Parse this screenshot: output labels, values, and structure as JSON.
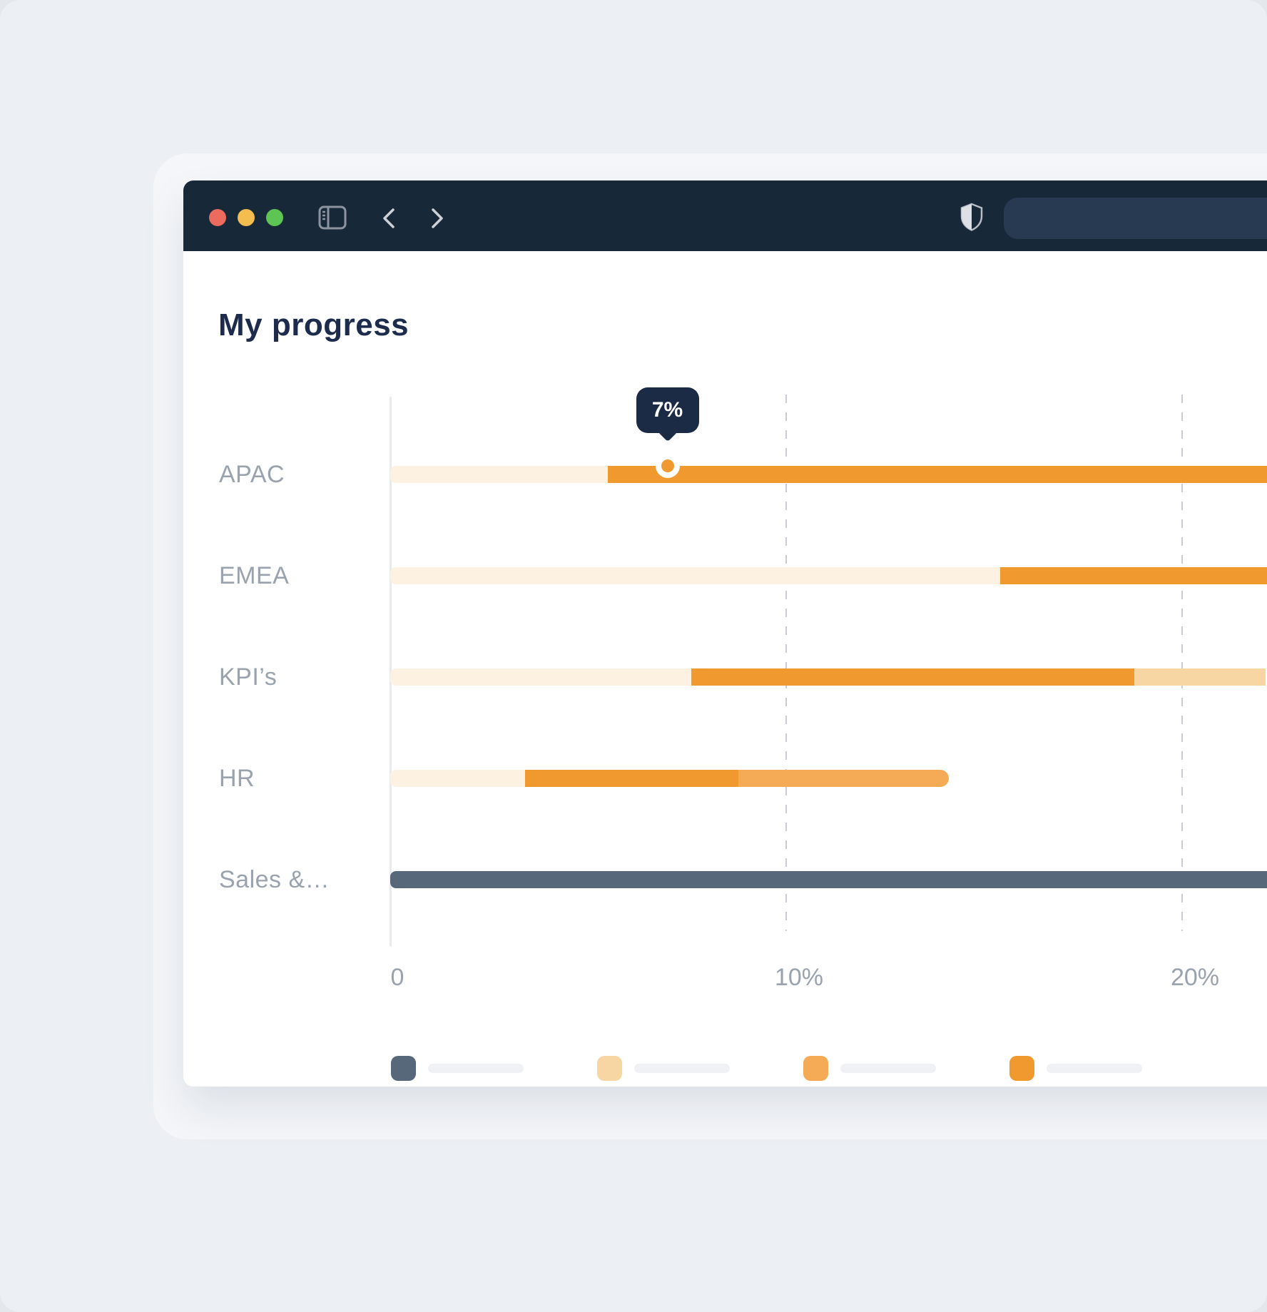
{
  "window": {
    "controls": [
      {
        "name": "close",
        "color": "#ed6a5e"
      },
      {
        "name": "minimize",
        "color": "#f4bd4f"
      },
      {
        "name": "zoom",
        "color": "#5ec454"
      }
    ],
    "toolbar_icons": [
      "sidebar-toggle-icon",
      "chevron-left-icon",
      "chevron-right-icon",
      "shield-icon"
    ],
    "address_bar": {
      "value": ""
    }
  },
  "page": {
    "title": "My progress"
  },
  "chart_data": {
    "type": "bar",
    "orientation": "horizontal",
    "title": "My progress",
    "unit": "percent",
    "x_axis": {
      "ticks": [
        {
          "value": 0,
          "label": "0"
        },
        {
          "value": 10,
          "label": "10%"
        },
        {
          "value": 20,
          "label": "20%"
        }
      ],
      "gridlines": [
        10,
        20
      ],
      "visible_max": 22.5,
      "grid_style": "dashed-vertical"
    },
    "categories": [
      "APAC",
      "EMEA",
      "KPI’s",
      "HR",
      "Sales &…"
    ],
    "rows": [
      {
        "label": "APAC",
        "segments": [
          {
            "color_key": "cream",
            "from": 0,
            "to": 5.5,
            "rounded_start": true
          },
          {
            "color_key": "orange",
            "from": 5.5,
            "to": 22.5,
            "cut_right": true
          }
        ],
        "marker": {
          "value": 7,
          "label": "7%"
        }
      },
      {
        "label": "EMEA",
        "segments": [
          {
            "color_key": "cream",
            "from": 0,
            "to": 15.4,
            "rounded_start": true
          },
          {
            "color_key": "orange",
            "from": 15.4,
            "to": 22.5,
            "cut_right": true
          }
        ]
      },
      {
        "label": "KPI’s",
        "segments": [
          {
            "color_key": "cream",
            "from": 0,
            "to": 7.6,
            "rounded_start": true
          },
          {
            "color_key": "orange",
            "from": 7.6,
            "to": 18.8
          },
          {
            "color_key": "tan",
            "from": 18.8,
            "to": 22.1,
            "cut_right": true
          }
        ]
      },
      {
        "label": "HR",
        "segments": [
          {
            "color_key": "cream",
            "from": 0,
            "to": 3.4,
            "rounded_start": true
          },
          {
            "color_key": "orange",
            "from": 3.4,
            "to": 8.8
          },
          {
            "color_key": "medium_orange",
            "from": 8.8,
            "to": 14.1,
            "rounded_end": true
          }
        ]
      },
      {
        "label": "Sales &…",
        "segments": [
          {
            "color_key": "slate",
            "from": 0,
            "to": 22.5,
            "rounded_start": true,
            "cut_right": true
          }
        ]
      }
    ],
    "colors": {
      "cream": "#fdf2e2",
      "tan": "#f7d6a4",
      "medium_orange": "#f5ab55",
      "orange": "#f0992e",
      "slate": "#566879"
    },
    "legend": [
      {
        "color_key": "slate",
        "label": "",
        "label_placeholder": true
      },
      {
        "color_key": "tan",
        "label": "",
        "label_placeholder": true
      },
      {
        "color_key": "medium_orange",
        "label": "",
        "label_placeholder": true
      },
      {
        "color_key": "orange",
        "label": "",
        "label_placeholder": true
      }
    ],
    "legend_position": "bottom"
  }
}
